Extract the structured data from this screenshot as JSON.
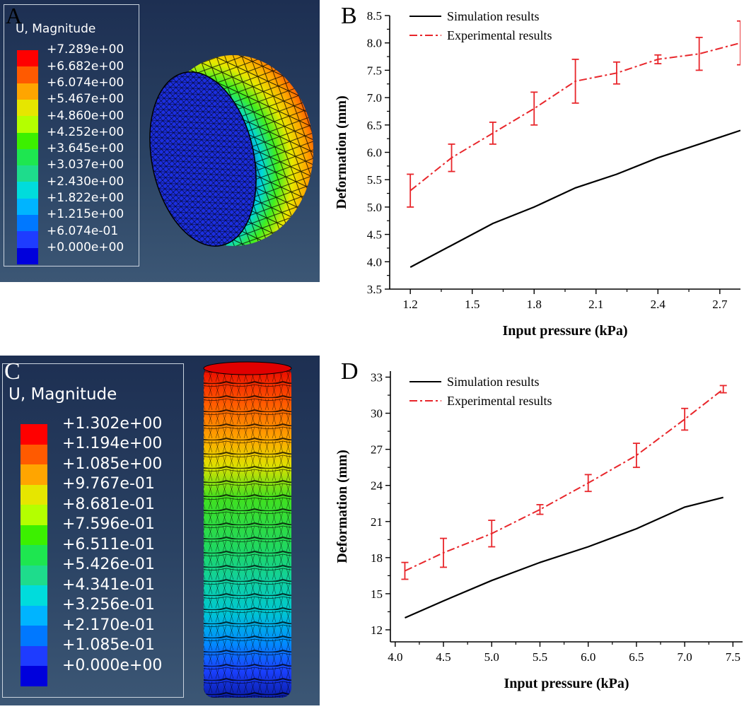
{
  "panels": {
    "a": {
      "letter": "A",
      "legend_title": "U, Magnitude",
      "legend_values": [
        "+7.289e+00",
        "+6.682e+00",
        "+6.074e+00",
        "+5.467e+00",
        "+4.860e+00",
        "+4.252e+00",
        "+3.645e+00",
        "+3.037e+00",
        "+2.430e+00",
        "+1.822e+00",
        "+1.215e+00",
        "+6.074e-01",
        "+0.000e+00"
      ]
    },
    "b": {
      "letter": "B"
    },
    "c": {
      "letter": "C",
      "legend_title": "U, Magnitude",
      "legend_values": [
        "+1.302e+00",
        "+1.194e+00",
        "+1.085e+00",
        "+9.767e-01",
        "+8.681e-01",
        "+7.596e-01",
        "+6.511e-01",
        "+5.426e-01",
        "+4.341e-01",
        "+3.256e-01",
        "+2.170e-01",
        "+1.085e-01",
        "+0.000e+00"
      ]
    },
    "d": {
      "letter": "D"
    }
  },
  "colors": {
    "contour": [
      "#ff0000",
      "#ff5a00",
      "#ffa500",
      "#e6e600",
      "#b4ff00",
      "#3cf000",
      "#1ee650",
      "#1edc8c",
      "#00dcdc",
      "#00b4ff",
      "#0078ff",
      "#1e3cff",
      "#0000dc"
    ],
    "simulation": "#000000",
    "experimental": "#e8262b"
  },
  "chart_data": [
    {
      "type": "line",
      "id": "B",
      "xlabel": "Input pressure (kPa)",
      "ylabel": "Deformation (mm)",
      "xlim": [
        1.1,
        2.8
      ],
      "ylim": [
        3.5,
        8.5
      ],
      "xticks": [
        1.2,
        1.5,
        1.8,
        2.1,
        2.4,
        2.7
      ],
      "xtick_labels": [
        "1.2",
        "1.5",
        "1.8",
        "2.1",
        "2.4",
        "2.7"
      ],
      "yticks": [
        3.5,
        4.0,
        4.5,
        5.0,
        5.5,
        6.0,
        6.5,
        7.0,
        7.5,
        8.0,
        8.5
      ],
      "ytick_labels": [
        "3.5",
        "4.0",
        "4.5",
        "5.0",
        "5.5",
        "6.0",
        "6.5",
        "7.0",
        "7.5",
        "8.0",
        "8.5"
      ],
      "legend": [
        "Simulation results",
        "Experimental results"
      ],
      "series": [
        {
          "name": "Simulation results",
          "style": "solid",
          "x": [
            1.2,
            1.4,
            1.6,
            1.8,
            2.0,
            2.2,
            2.4,
            2.6,
            2.8
          ],
          "y": [
            3.9,
            4.3,
            4.7,
            5.0,
            5.35,
            5.6,
            5.9,
            6.15,
            6.4
          ]
        },
        {
          "name": "Experimental results",
          "style": "dashdot",
          "x": [
            1.2,
            1.4,
            1.6,
            1.8,
            2.0,
            2.2,
            2.4,
            2.6,
            2.8
          ],
          "y": [
            5.3,
            5.9,
            6.35,
            6.8,
            7.3,
            7.45,
            7.7,
            7.8,
            8.0
          ],
          "err": [
            0.3,
            0.25,
            0.2,
            0.3,
            0.4,
            0.2,
            0.08,
            0.3,
            0.4
          ]
        }
      ]
    },
    {
      "type": "line",
      "id": "D",
      "xlabel": "Input pressure (kPa)",
      "ylabel": "Deformation (mm)",
      "xlim": [
        3.95,
        7.6
      ],
      "ylim": [
        11.0,
        33.5
      ],
      "xticks": [
        4.0,
        4.5,
        5.0,
        5.5,
        6.0,
        6.5,
        7.0,
        7.5
      ],
      "xtick_labels": [
        "4.0",
        "4.5",
        "5.0",
        "5.5",
        "6.0",
        "6.5",
        "7.0",
        "7.5"
      ],
      "yticks": [
        12,
        15,
        18,
        21,
        24,
        27,
        30,
        33
      ],
      "ytick_labels": [
        "12",
        "15",
        "18",
        "21",
        "24",
        "27",
        "30",
        "33"
      ],
      "legend": [
        "Simulation results",
        "Experimental results"
      ],
      "series": [
        {
          "name": "Simulation results",
          "style": "solid",
          "x": [
            4.1,
            4.5,
            5.0,
            5.5,
            6.0,
            6.5,
            7.0,
            7.4
          ],
          "y": [
            13.0,
            14.4,
            16.1,
            17.6,
            18.9,
            20.4,
            22.2,
            23.0
          ]
        },
        {
          "name": "Experimental results",
          "style": "dashdot",
          "x": [
            4.1,
            4.5,
            5.0,
            5.5,
            6.0,
            6.5,
            7.0,
            7.4
          ],
          "y": [
            16.9,
            18.4,
            20.0,
            22.0,
            24.2,
            26.5,
            29.5,
            32.0
          ],
          "err": [
            0.7,
            1.2,
            1.1,
            0.4,
            0.7,
            1.0,
            0.9,
            0.3
          ]
        }
      ]
    }
  ]
}
